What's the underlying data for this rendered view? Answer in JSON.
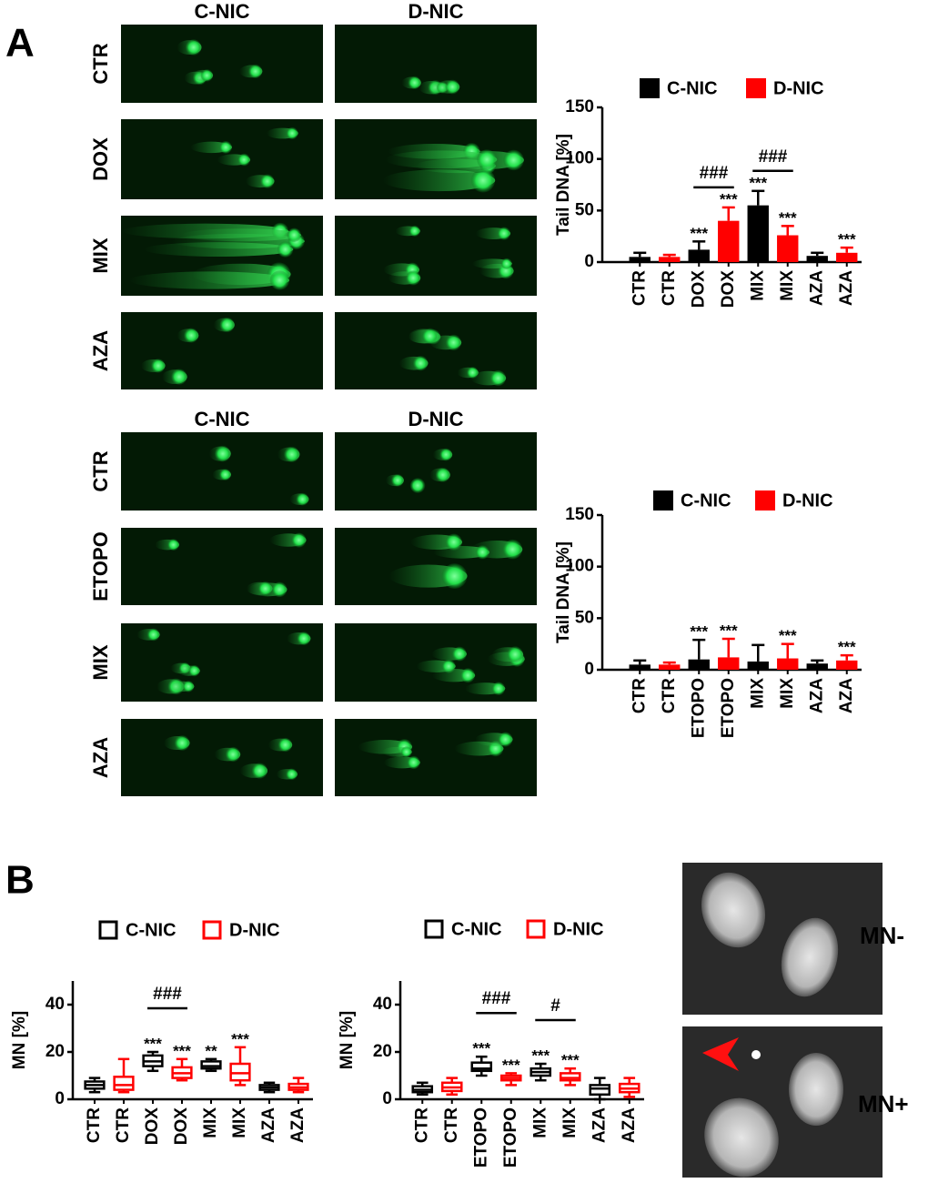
{
  "panels": {
    "a": "A",
    "b": "B"
  },
  "comet_groups": [
    {
      "columns": [
        "C-NIC",
        "D-NIC"
      ],
      "rows": [
        "CTR",
        "DOX",
        "MIX",
        "AZA"
      ]
    },
    {
      "columns": [
        "C-NIC",
        "D-NIC"
      ],
      "rows": [
        "CTR",
        "ETOPO",
        "MIX",
        "AZA"
      ]
    }
  ],
  "micrograph_labels": [
    "MN-",
    "MN+"
  ],
  "chart_data": [
    {
      "type": "bar",
      "ylabel": "Tail DNA [%]",
      "categories": [
        "CTR",
        "CTR",
        "DOX",
        "DOX",
        "MIX",
        "MIX",
        "AZA",
        "AZA"
      ],
      "ylim": [
        0,
        150
      ],
      "yticks": [
        0,
        50,
        100,
        150
      ],
      "series": [
        {
          "name": "C-NIC",
          "color": "#000000",
          "values": [
            5,
            null,
            12,
            null,
            55,
            null,
            6,
            null
          ],
          "errors": [
            4,
            null,
            8,
            null,
            14,
            null,
            3,
            null
          ],
          "significance": [
            null,
            null,
            "***",
            null,
            "***",
            null,
            null,
            null
          ]
        },
        {
          "name": "D-NIC",
          "color": "#ff0000",
          "values": [
            null,
            5,
            null,
            40,
            null,
            26,
            null,
            9
          ],
          "errors": [
            null,
            2,
            null,
            13,
            null,
            9,
            null,
            5
          ],
          "significance": [
            null,
            null,
            null,
            "***",
            null,
            "***",
            null,
            "***"
          ]
        }
      ],
      "brackets": [
        {
          "label": "###",
          "categories": [
            2,
            3
          ]
        },
        {
          "label": "###",
          "categories": [
            4,
            5
          ]
        }
      ]
    },
    {
      "type": "bar",
      "ylabel": "Tail DNA [%]",
      "categories": [
        "CTR",
        "CTR",
        "ETOPO",
        "ETOPO",
        "MIX",
        "MIX",
        "AZA",
        "AZA"
      ],
      "ylim": [
        0,
        150
      ],
      "yticks": [
        0,
        50,
        100,
        150
      ],
      "series": [
        {
          "name": "C-NIC",
          "color": "#000000",
          "values": [
            5,
            null,
            10,
            null,
            8,
            null,
            6,
            null
          ],
          "errors": [
            4,
            null,
            19,
            null,
            16,
            null,
            3,
            null
          ],
          "significance": [
            null,
            null,
            "***",
            null,
            null,
            null,
            null,
            null
          ]
        },
        {
          "name": "D-NIC",
          "color": "#ff0000",
          "values": [
            null,
            5,
            null,
            12,
            null,
            11,
            null,
            9
          ],
          "errors": [
            null,
            2,
            null,
            18,
            null,
            14,
            null,
            5
          ],
          "significance": [
            null,
            null,
            null,
            "***",
            null,
            "***",
            null,
            "***"
          ]
        }
      ],
      "brackets": []
    },
    {
      "type": "box",
      "ylabel": "MN [%]",
      "categories": [
        "CTR",
        "CTR",
        "DOX",
        "DOX",
        "MIX",
        "MIX",
        "AZA",
        "AZA"
      ],
      "ylim": [
        0,
        50
      ],
      "yticks": [
        0,
        20,
        40
      ],
      "series": [
        {
          "name": "C-NIC",
          "color": "#000000",
          "values": [
            {
              "low": 3,
              "q1": 4.5,
              "median": 6,
              "q3": 7.5,
              "high": 9
            },
            null,
            {
              "low": 12,
              "q1": 14,
              "median": 16,
              "q3": 18.5,
              "high": 20
            },
            null,
            {
              "low": 12,
              "q1": 13,
              "median": 14,
              "q3": 16,
              "high": 17
            },
            null,
            {
              "low": 3,
              "q1": 4,
              "median": 5,
              "q3": 6,
              "high": 7
            },
            null
          ],
          "significance": [
            null,
            null,
            "***",
            null,
            "**",
            null,
            null,
            null
          ]
        },
        {
          "name": "D-NIC",
          "color": "#ff0000",
          "values": [
            null,
            {
              "low": 3,
              "q1": 4,
              "median": 6,
              "q3": 9.5,
              "high": 17
            },
            null,
            {
              "low": 8,
              "q1": 9,
              "median": 11,
              "q3": 13.5,
              "high": 17
            },
            null,
            {
              "low": 6,
              "q1": 8,
              "median": 11,
              "q3": 15,
              "high": 22
            },
            null,
            {
              "low": 3,
              "q1": 4,
              "median": 5,
              "q3": 6.5,
              "high": 9
            }
          ],
          "significance": [
            null,
            null,
            null,
            "***",
            null,
            "***",
            null,
            null
          ]
        }
      ],
      "brackets": [
        {
          "label": "###",
          "categories": [
            2,
            3
          ]
        }
      ]
    },
    {
      "type": "box",
      "ylabel": "MN [%]",
      "categories": [
        "CTR",
        "CTR",
        "ETOPO",
        "ETOPO",
        "MIX",
        "MIX",
        "AZA",
        "AZA"
      ],
      "ylim": [
        0,
        50
      ],
      "yticks": [
        0,
        20,
        40
      ],
      "series": [
        {
          "name": "C-NIC",
          "color": "#000000",
          "values": [
            {
              "low": 2,
              "q1": 3,
              "median": 4,
              "q3": 5.5,
              "high": 7
            },
            null,
            {
              "low": 10,
              "q1": 12,
              "median": 13,
              "q3": 15.5,
              "high": 18
            },
            null,
            {
              "low": 8,
              "q1": 10,
              "median": 11.5,
              "q3": 13,
              "high": 15
            },
            null,
            {
              "low": 0,
              "q1": 2,
              "median": 4.5,
              "q3": 6,
              "high": 9
            },
            null
          ],
          "significance": [
            null,
            null,
            "***",
            null,
            "***",
            null,
            null,
            null
          ]
        },
        {
          "name": "D-NIC",
          "color": "#ff0000",
          "values": [
            null,
            {
              "low": 2,
              "q1": 3.5,
              "median": 5,
              "q3": 7,
              "high": 9
            },
            null,
            {
              "low": 6,
              "q1": 8,
              "median": 9,
              "q3": 10,
              "high": 11
            },
            null,
            {
              "low": 6,
              "q1": 8,
              "median": 9,
              "q3": 11,
              "high": 13
            },
            null,
            {
              "low": 1,
              "q1": 3,
              "median": 4.5,
              "q3": 6.5,
              "high": 9
            }
          ],
          "significance": [
            null,
            null,
            null,
            "***",
            null,
            "***",
            null,
            null
          ]
        }
      ],
      "brackets": [
        {
          "label": "###",
          "categories": [
            2,
            3
          ]
        },
        {
          "label": "#",
          "categories": [
            4,
            5
          ]
        }
      ]
    }
  ]
}
